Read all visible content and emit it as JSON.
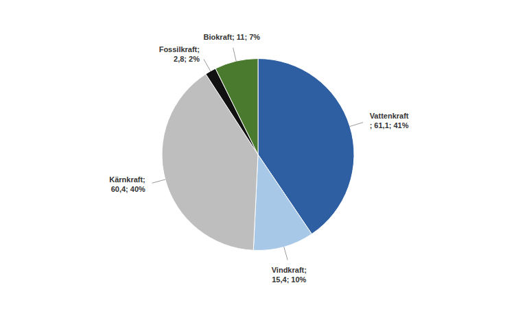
{
  "chart_data": {
    "type": "pie",
    "values": [
      61.1,
      15.4,
      60.4,
      2.8,
      11.0
    ],
    "value_labels": [
      "Vattenkraft\n; 61,1; 41%",
      "Vindkraft;\n15,4; 10%",
      "Kärnkraft;\n60,4; 40%",
      "Fossilkraft;\n2,8; 2%",
      "Biokraft; 11; 7%"
    ],
    "colors": [
      "#2E5FA3",
      "#A8C8E8",
      "#BEBEBE",
      "#111111",
      "#4A7A2E"
    ],
    "data_labels": true
  }
}
